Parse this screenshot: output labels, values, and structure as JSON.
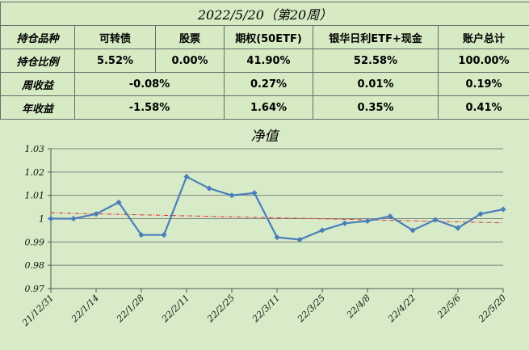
{
  "summary": {
    "title": "2022/5/20（第20周）",
    "rows": [
      {
        "label": "持仓品种",
        "cells": [
          "可转债",
          "股票",
          "期权(50ETF)",
          "银华日利ETF+现金",
          "账户总计"
        ]
      },
      {
        "label": "持仓比例",
        "cells": [
          "5.52%",
          "0.00%",
          "41.90%",
          "52.58%",
          "100.00%"
        ]
      },
      {
        "label": "周收益",
        "merged": "-0.08%",
        "cells": [
          "0.27%",
          "0.01%",
          "0.19%"
        ]
      },
      {
        "label": "年收益",
        "merged": "-1.58%",
        "cells": [
          "1.64%",
          "0.35%",
          "0.41%"
        ]
      }
    ]
  },
  "chart_data": {
    "type": "line",
    "title": "净值",
    "x": [
      "21/12/31",
      "22/1/7",
      "22/1/14",
      "22/1/21",
      "22/1/28",
      "22/2/4",
      "22/2/11",
      "22/2/18",
      "22/2/25",
      "22/3/4",
      "22/3/11",
      "22/3/18",
      "22/3/25",
      "22/4/1",
      "22/4/8",
      "22/4/15",
      "22/4/22",
      "22/4/29",
      "22/5/6",
      "22/5/13",
      "22/5/20"
    ],
    "tick_labels": [
      "21/12/31",
      "22/1/14",
      "22/1/28",
      "22/2/11",
      "22/2/25",
      "22/3/11",
      "22/3/25",
      "22/4/8",
      "22/4/22",
      "22/5/6",
      "22/5/20"
    ],
    "values": [
      1.0,
      1.0,
      1.002,
      1.007,
      0.993,
      0.993,
      1.018,
      1.013,
      1.01,
      1.011,
      0.992,
      0.991,
      0.995,
      0.998,
      0.999,
      1.001,
      0.995,
      0.9995,
      0.996,
      1.002,
      1.004
    ],
    "trendline": {
      "start": 1.0025,
      "end": 0.9982
    },
    "ylim": [
      0.97,
      1.03
    ],
    "yticks": [
      "0.97",
      "0.98",
      "0.99",
      "1",
      "1.01",
      "1.02",
      "1.03"
    ],
    "grid": true,
    "colors": {
      "line": "#4a7ebb",
      "trend": "#d9302c",
      "grid": "#808080"
    }
  }
}
